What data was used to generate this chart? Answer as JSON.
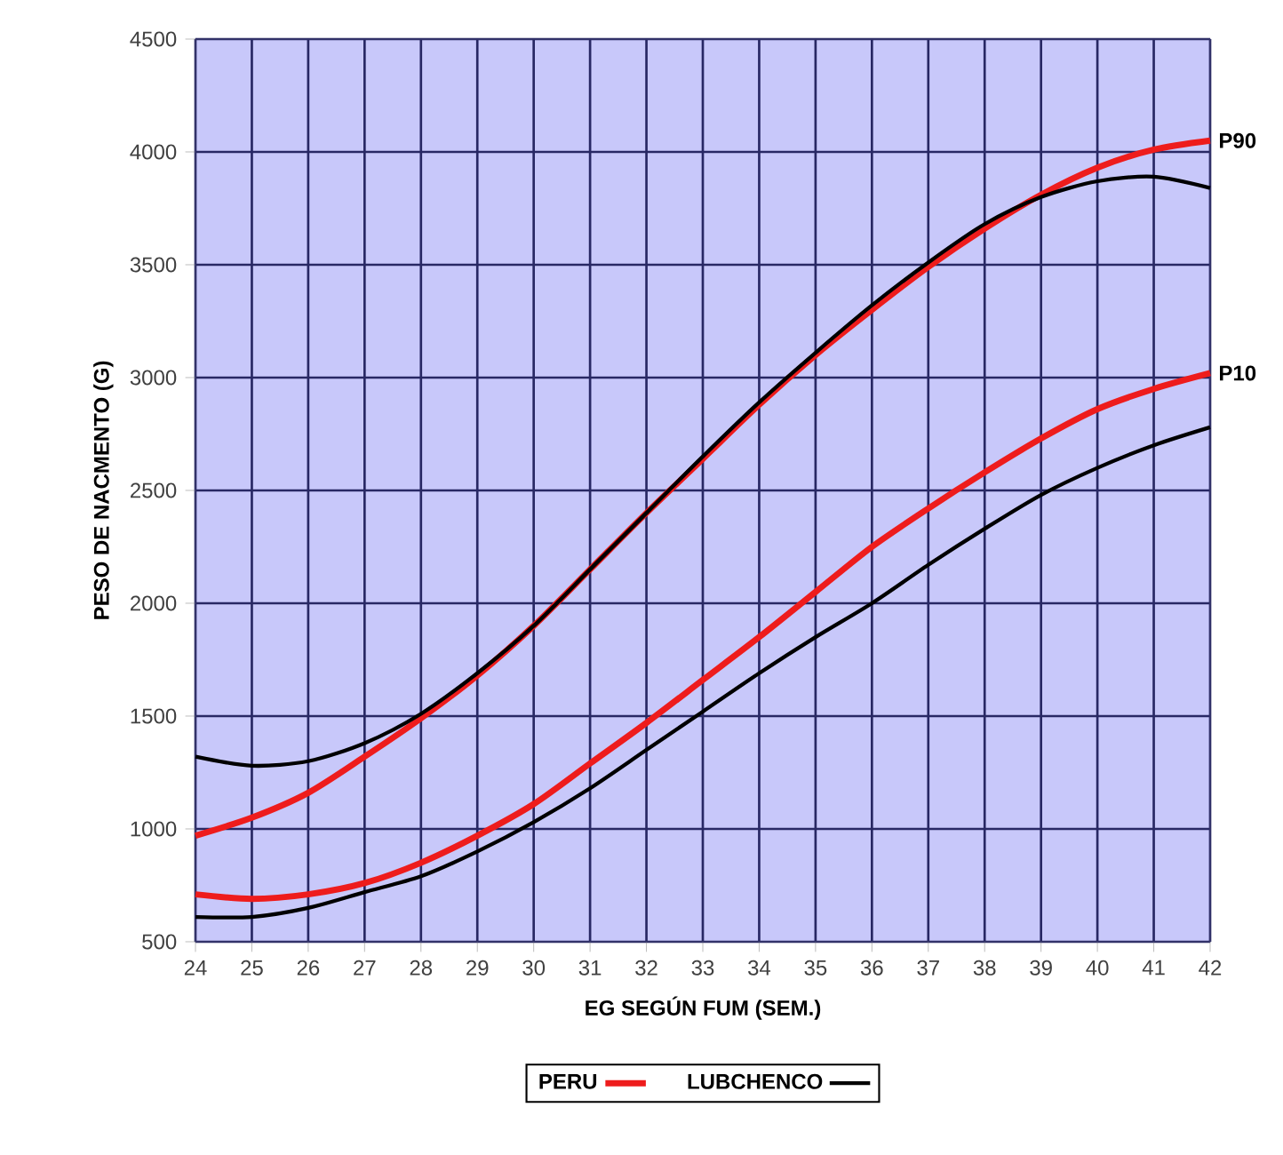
{
  "chart_data": {
    "type": "line",
    "xlabel": "EG SEGÚN FUM (SEM.)",
    "ylabel": "PESO DE NACMENTO (G)",
    "x": [
      24,
      25,
      26,
      27,
      28,
      29,
      30,
      31,
      32,
      33,
      34,
      35,
      36,
      37,
      38,
      39,
      40,
      41,
      42
    ],
    "series": [
      {
        "name": "PERU",
        "color": "#ee1c1c",
        "values": [
          970,
          1050,
          1160,
          1320,
          1490,
          1680,
          1900,
          2150,
          2400,
          2640,
          2880,
          3100,
          3300,
          3490,
          3660,
          3810,
          3930,
          4010,
          4050
        ]
      },
      {
        "name": "LUBCHENCO",
        "color": "#000000",
        "values": [
          1320,
          1280,
          1300,
          1380,
          1510,
          1690,
          1900,
          2150,
          2400,
          2650,
          2890,
          3110,
          3320,
          3510,
          3680,
          3800,
          3870,
          3890,
          3840
        ]
      },
      {
        "color": "#ee1c1c",
        "values": [
          710,
          690,
          710,
          760,
          850,
          970,
          1110,
          1290,
          1470,
          1660,
          1850,
          2050,
          2250,
          2420,
          2580,
          2730,
          2860,
          2950,
          3020
        ]
      },
      {
        "color": "#000000",
        "values": [
          610,
          610,
          650,
          720,
          790,
          900,
          1030,
          1180,
          1350,
          1520,
          1690,
          1850,
          2000,
          2170,
          2330,
          2480,
          2600,
          2700,
          2780
        ]
      }
    ],
    "xlim": [
      24,
      42
    ],
    "xticks": [
      24,
      25,
      26,
      27,
      28,
      29,
      30,
      31,
      32,
      33,
      34,
      35,
      36,
      37,
      38,
      39,
      40,
      41,
      42
    ],
    "ylim": [
      500,
      4500
    ],
    "yticks": [
      500,
      1000,
      1500,
      2000,
      2500,
      3000,
      3500,
      4000,
      4500
    ],
    "grid": true,
    "legend": "bottom",
    "line_style": "solid",
    "marker": "none",
    "annotations": [
      {
        "text": "P90",
        "x": 42,
        "y": 4050
      },
      {
        "text": "P10",
        "x": 42,
        "y": 3020
      }
    ]
  }
}
